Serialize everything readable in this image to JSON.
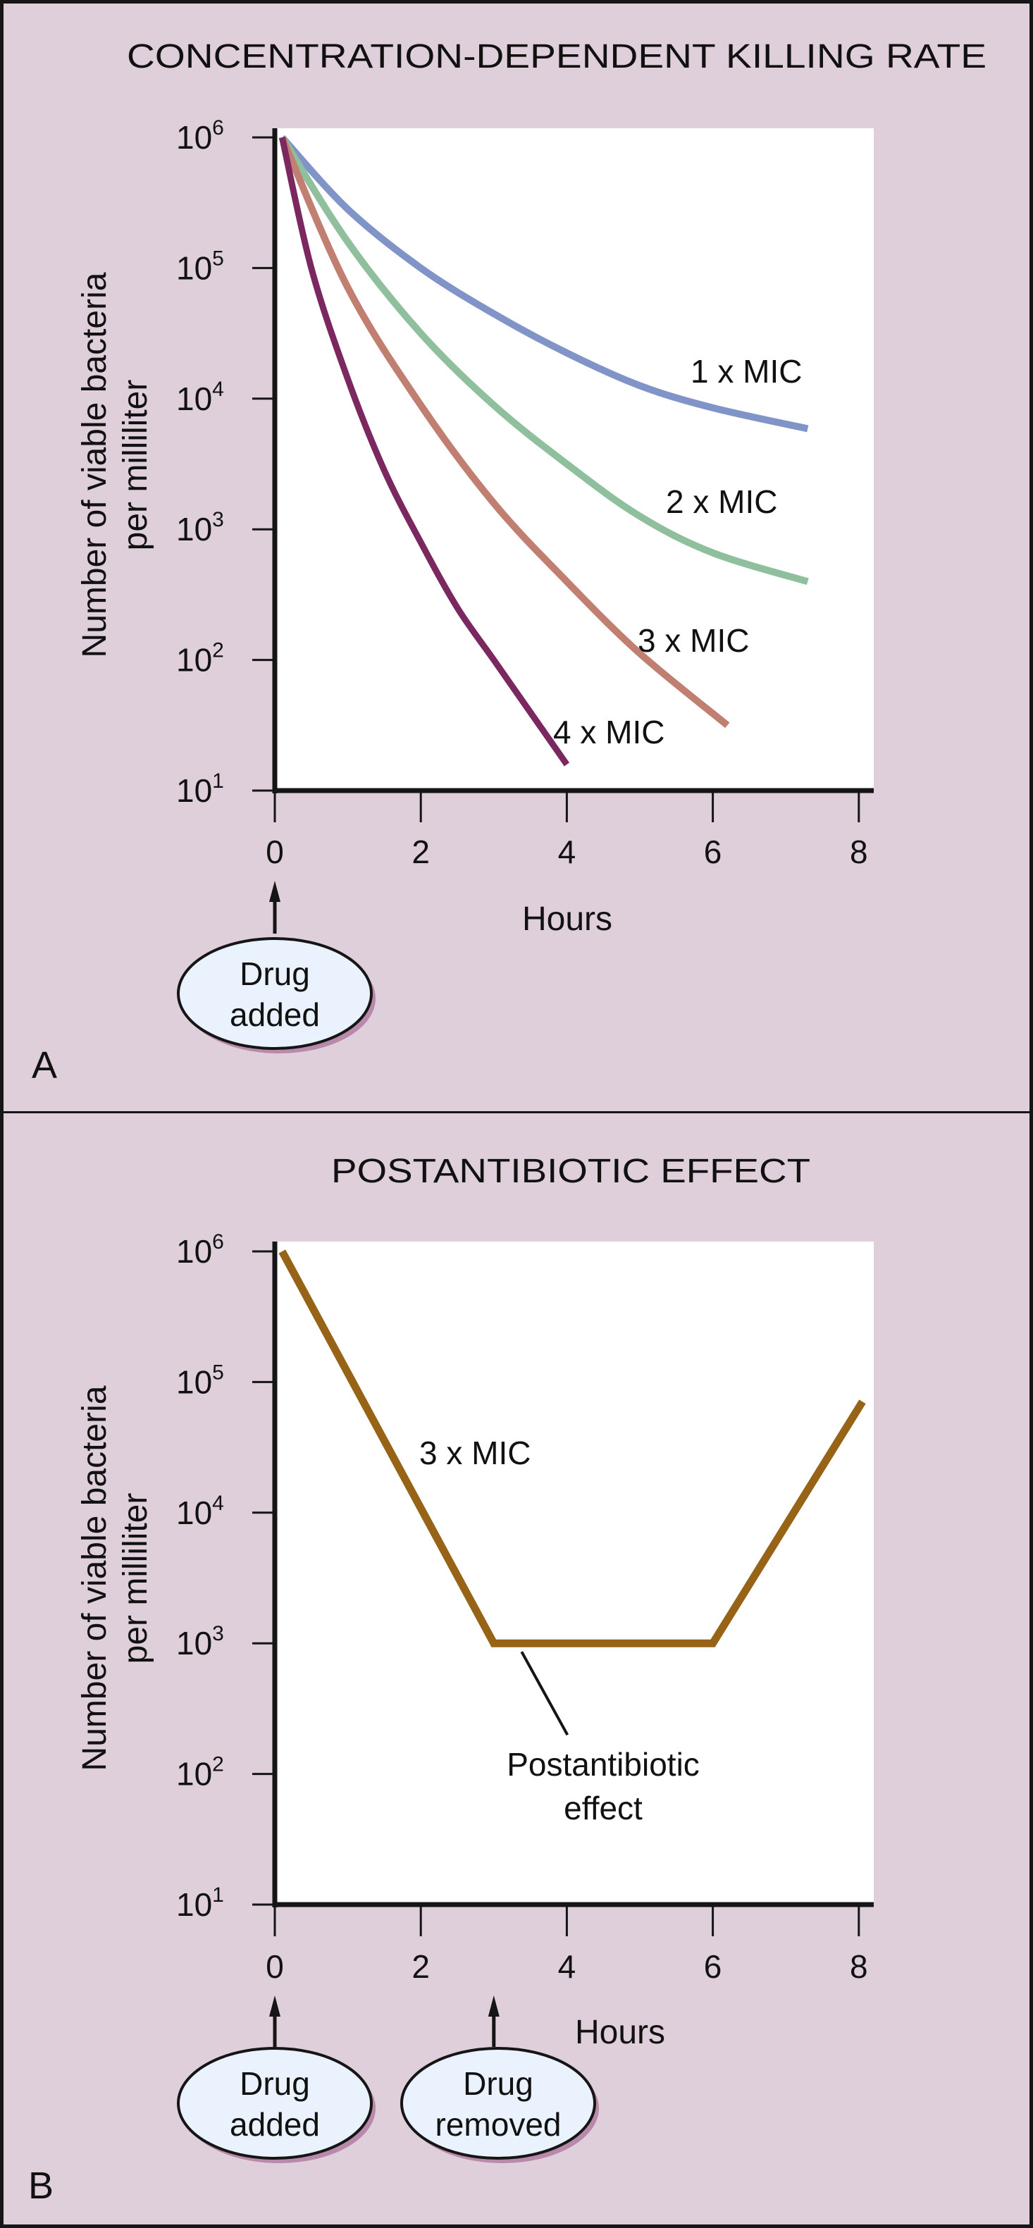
{
  "chart_data": [
    {
      "panel": "A",
      "type": "line",
      "title": "CONCENTRATION-DEPENDENT KILLING RATE",
      "xlabel": "Hours",
      "ylabel": [
        "Number of viable bacteria",
        "per milliliter"
      ],
      "yscale": "log",
      "xlim": [
        0,
        8
      ],
      "ylim_exponents": [
        1,
        6
      ],
      "xticks": [
        "0",
        "2",
        "4",
        "6",
        "8"
      ],
      "yticks": [
        {
          "base": "10",
          "exp": "6"
        },
        {
          "base": "10",
          "exp": "5"
        },
        {
          "base": "10",
          "exp": "4"
        },
        {
          "base": "10",
          "exp": "3"
        },
        {
          "base": "10",
          "exp": "2"
        },
        {
          "base": "10",
          "exp": "1"
        }
      ],
      "grid": false,
      "series": [
        {
          "name": "1 x MIC",
          "color": "#8094c8",
          "x": [
            0.1,
            1,
            2,
            3,
            4,
            5,
            6,
            7.3
          ],
          "log10_y": [
            6.0,
            5.45,
            5.0,
            4.65,
            4.35,
            4.1,
            3.93,
            3.77
          ]
        },
        {
          "name": "2 x MIC",
          "color": "#8fbf9d",
          "x": [
            0.1,
            1,
            2,
            3,
            4,
            5,
            6,
            7.3
          ],
          "log10_y": [
            6.0,
            5.2,
            4.5,
            3.95,
            3.5,
            3.1,
            2.82,
            2.6
          ]
        },
        {
          "name": "3 x MIC",
          "color": "#c07f70",
          "x": [
            0.1,
            1,
            2,
            3,
            4,
            5,
            6.2
          ],
          "log10_y": [
            6.0,
            4.85,
            3.95,
            3.2,
            2.6,
            2.05,
            1.5
          ]
        },
        {
          "name": "4 x MIC",
          "color": "#7b2860",
          "x": [
            0.1,
            0.5,
            1,
            1.5,
            2,
            2.5,
            3,
            3.5,
            4
          ],
          "log10_y": [
            6.0,
            5.0,
            4.15,
            3.45,
            2.9,
            2.4,
            2.0,
            1.6,
            1.2
          ]
        }
      ],
      "annotations": [
        {
          "text": [
            "Drug",
            "added"
          ],
          "x": 0
        }
      ],
      "panel_letter": "A"
    },
    {
      "panel": "B",
      "type": "line",
      "title": "POSTANTIBIOTIC EFFECT",
      "xlabel": "Hours",
      "ylabel": [
        "Number of viable bacteria",
        "per milliliter"
      ],
      "yscale": "log",
      "xlim": [
        0,
        8
      ],
      "ylim_exponents": [
        1,
        6
      ],
      "xticks": [
        "0",
        "2",
        "4",
        "6",
        "8"
      ],
      "yticks": [
        {
          "base": "10",
          "exp": "6"
        },
        {
          "base": "10",
          "exp": "5"
        },
        {
          "base": "10",
          "exp": "4"
        },
        {
          "base": "10",
          "exp": "3"
        },
        {
          "base": "10",
          "exp": "2"
        },
        {
          "base": "10",
          "exp": "1"
        }
      ],
      "grid": false,
      "series": [
        {
          "name": "3 x MIC",
          "color": "#976316",
          "x": [
            0.1,
            3,
            6,
            8.05
          ],
          "log10_y": [
            6.0,
            3.0,
            3.0,
            4.85
          ]
        }
      ],
      "annotations": [
        {
          "text": [
            "Postantibiotic",
            "effect"
          ],
          "x": 3.7,
          "log10_y": 3.0
        },
        {
          "text": [
            "Drug",
            "added"
          ],
          "x": 0
        },
        {
          "text": [
            "Drug",
            "removed"
          ],
          "x": 3
        }
      ],
      "panel_letter": "B"
    }
  ]
}
